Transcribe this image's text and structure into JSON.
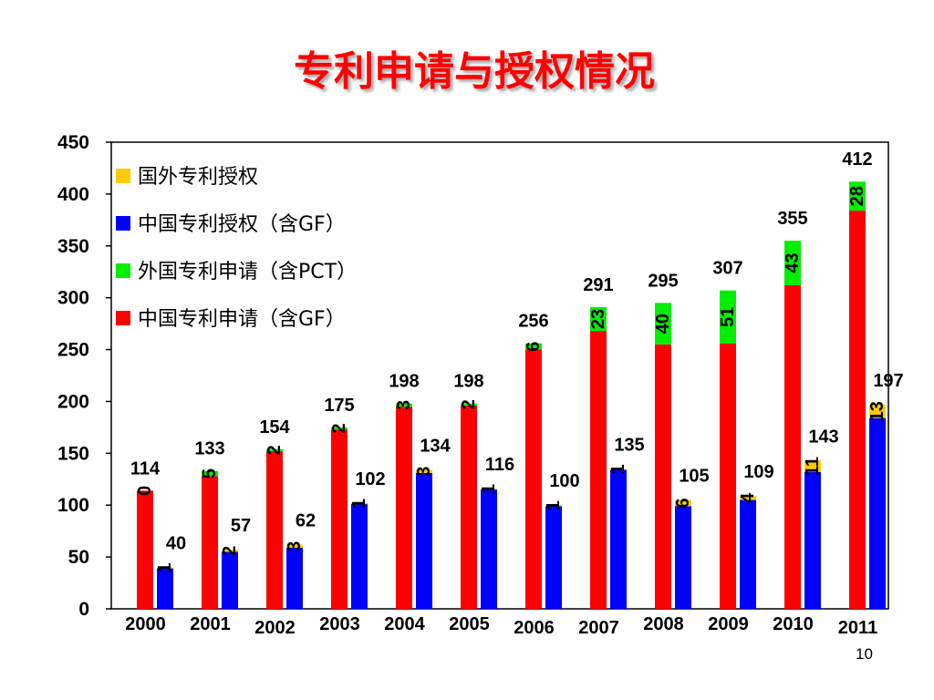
{
  "slide": {
    "title": "专利申请与授权情况",
    "page_number": "10"
  },
  "colors": {
    "china_application": "#ff0000",
    "foreign_application": "#00ee00",
    "china_grant": "#0000ff",
    "foreign_grant": "#ffcc00",
    "axis": "#000000"
  },
  "chart_data": {
    "type": "bar",
    "stacked": true,
    "grid": false,
    "legend_position": "top-left",
    "xlabel": "",
    "ylabel": "",
    "ylim": [
      0,
      450
    ],
    "yticks": [
      0,
      50,
      100,
      150,
      200,
      250,
      300,
      350,
      400,
      450
    ],
    "categories": [
      "2000",
      "2001",
      "2002",
      "2003",
      "2004",
      "2005",
      "2006",
      "2007",
      "2008",
      "2009",
      "2010",
      "2011"
    ],
    "series": [
      {
        "name": "国外专利授权",
        "group": "grant",
        "color_key": "foreign_grant",
        "values": [
          1,
          2,
          3,
          1,
          3,
          1,
          1,
          1,
          6,
          4,
          11,
          13
        ],
        "labels": [
          "1",
          "2",
          "3",
          "1",
          "3",
          "1",
          "1",
          "1",
          "6",
          "4",
          "11",
          "13"
        ]
      },
      {
        "name": "中国专利授权（含GF）",
        "group": "grant",
        "color_key": "china_grant",
        "values": [
          39,
          55,
          59,
          101,
          131,
          115,
          99,
          134,
          99,
          105,
          132,
          184
        ]
      },
      {
        "name": "外国专利申请（含PCT）",
        "group": "application",
        "color_key": "foreign_application",
        "values": [
          0,
          5,
          2,
          2,
          3,
          2,
          6,
          23,
          40,
          51,
          43,
          28
        ],
        "labels": [
          "0",
          "5",
          "2",
          "2",
          "3",
          "2",
          "6",
          "23",
          "40",
          "51",
          "43",
          "28"
        ]
      },
      {
        "name": "中国专利申请（含GF）",
        "group": "application",
        "color_key": "china_application",
        "values": [
          114,
          128,
          152,
          173,
          195,
          196,
          250,
          268,
          255,
          256,
          312,
          384
        ]
      }
    ],
    "grant_totals": [
      "40",
      "57",
      "62",
      "102",
      "134",
      "116",
      "100",
      "135",
      "105",
      "109",
      "143",
      "197"
    ],
    "application_totals": [
      "114",
      "133",
      "154",
      "175",
      "198",
      "198",
      "256",
      "291",
      "295",
      "307",
      "355",
      "412"
    ]
  }
}
